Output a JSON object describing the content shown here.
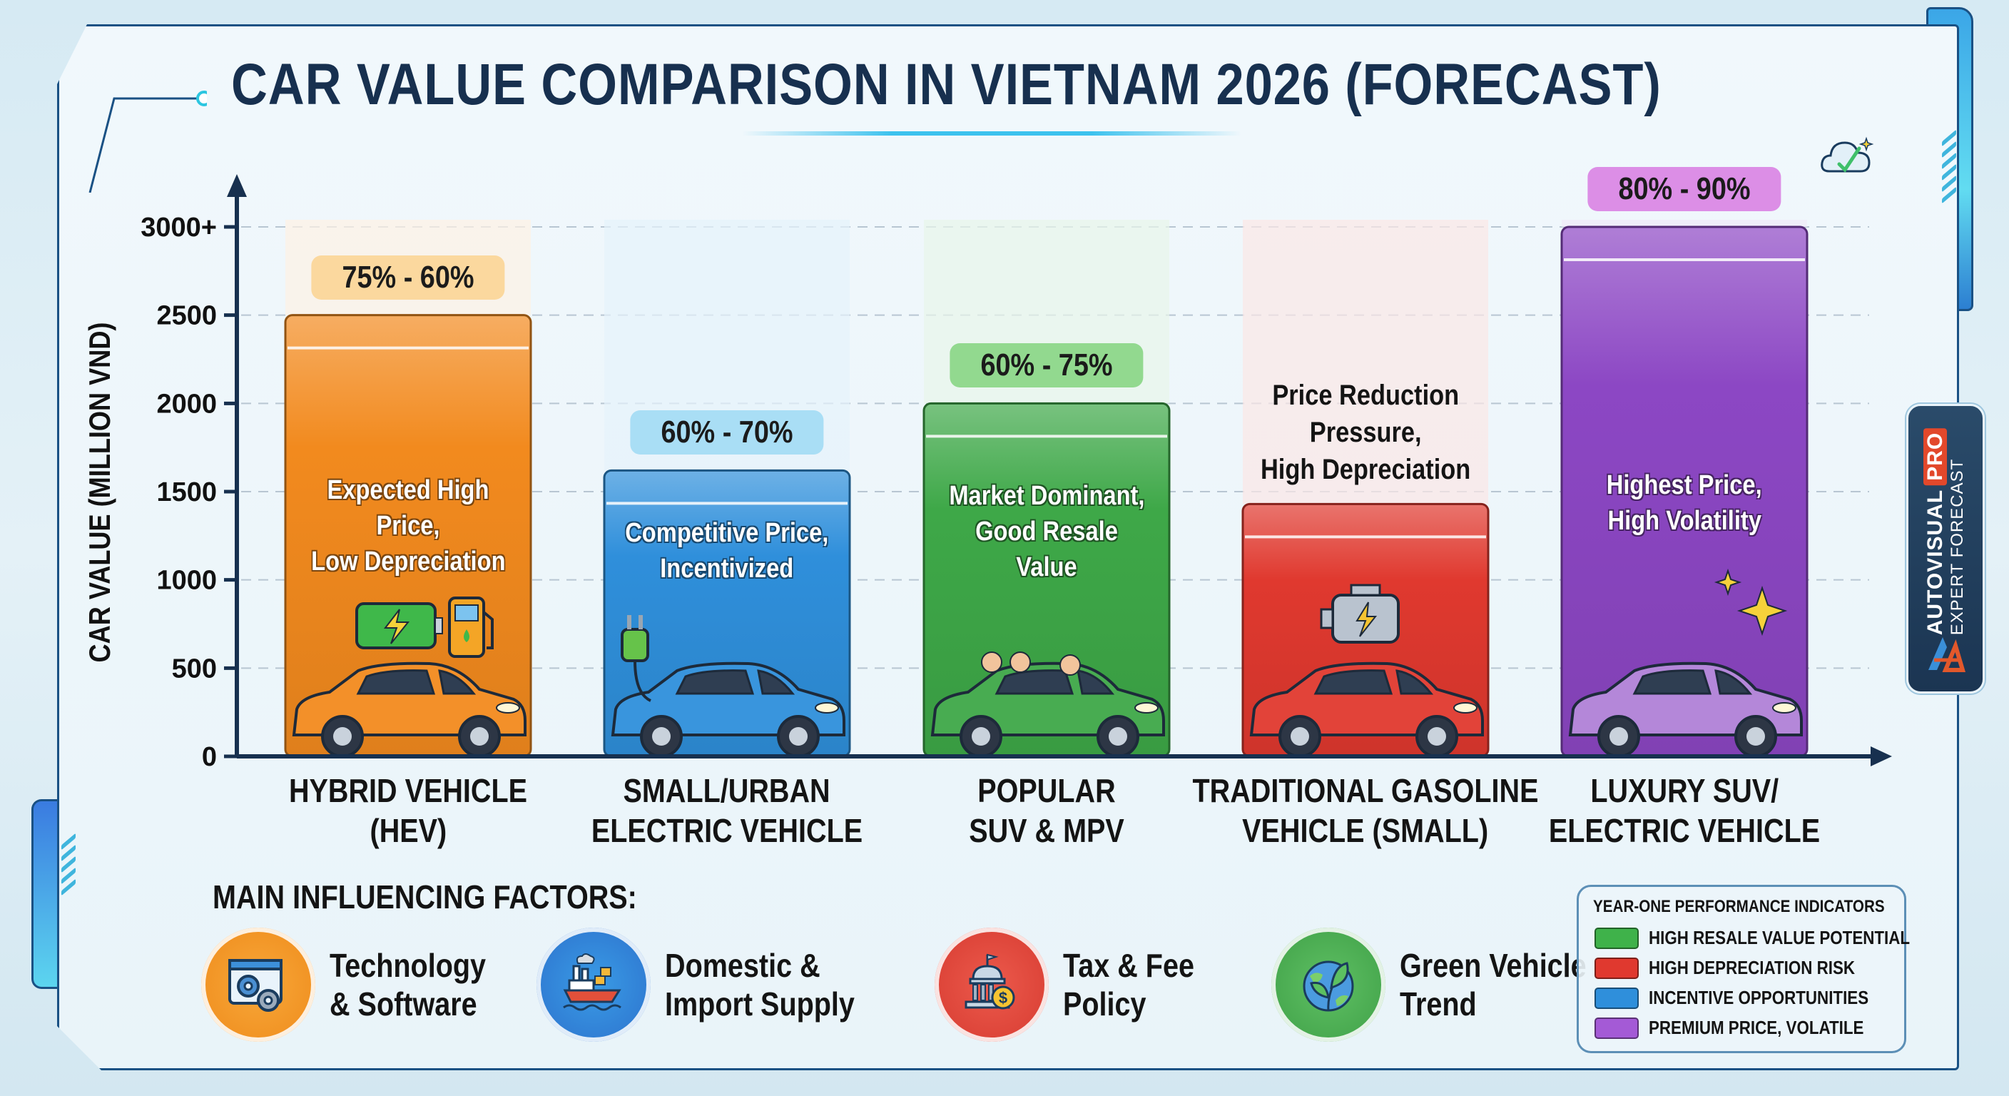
{
  "title": "CAR VALUE COMPARISON IN VIETNAM 2026 (FORECAST)",
  "brand_badge": {
    "name": "AUTOVISUAL",
    "tier": "PRO",
    "subtitle": "EXPERT FORECAST"
  },
  "chart_data": {
    "type": "bar",
    "title": "CAR VALUE COMPARISON IN VIETNAM 2026 (FORECAST)",
    "xlabel": "",
    "ylabel": "CAR VALUE (MILLION VND)",
    "ylim": [
      0,
      3000
    ],
    "yticks": [
      0,
      500,
      1000,
      1500,
      2000,
      2500,
      3000
    ],
    "ytick_labels": [
      "0",
      "500",
      "1000",
      "1500",
      "2000",
      "2500",
      "3000+"
    ],
    "grid": true,
    "categories": [
      [
        "HYBRID VEHICLE",
        "(HEV)"
      ],
      [
        "SMALL/URBAN",
        "ELECTRIC VEHICLE"
      ],
      [
        "POPULAR",
        "SUV & MPV"
      ],
      [
        "TRADITIONAL GASOLINE",
        "VEHICLE (SMALL)"
      ],
      [
        "LUXURY SUV/",
        "ELECTRIC VEHICLE"
      ]
    ],
    "values": [
      2500,
      1620,
      2000,
      1430,
      3000
    ],
    "retention_labels": [
      "75% - 60%",
      "60% - 70%",
      "60% - 75%",
      "",
      "80% - 90%"
    ],
    "bar_captions": [
      [
        "Expected High Price,",
        "Low Depreciation"
      ],
      [
        "Competitive Price,",
        "Incentivized"
      ],
      [
        "Market Dominant,",
        "Good Resale Value"
      ],
      [
        "Price Reduction",
        "Pressure,",
        "High Depreciation"
      ],
      [
        "Highest Price,",
        "High Volatility"
      ]
    ],
    "bar_icons": [
      "hybrid-battery-fuel-car",
      "ev-plug-car",
      "family-suv",
      "engine-sedan",
      "sparkle-luxury-suv"
    ],
    "bar_colors": [
      "#f28a1e",
      "#2f8fdb",
      "#3ea848",
      "#e0392f",
      "#8c47c4"
    ],
    "badge_colors": [
      "#fbd89e",
      "#a9def5",
      "#92d98f",
      "",
      "#dc8ee6"
    ]
  },
  "factors": {
    "heading": "MAIN INFLUENCING FACTORS:",
    "items": [
      {
        "lines": [
          "Technology",
          "& Software"
        ],
        "icon": "gears-window-icon",
        "color": "#f3a12a"
      },
      {
        "lines": [
          "Domestic &",
          "Import Supply"
        ],
        "icon": "cargo-ship-icon",
        "color": "#2c85d8"
      },
      {
        "lines": [
          "Tax & Fee",
          "Policy"
        ],
        "icon": "government-building-icon",
        "color": "#e0463c"
      },
      {
        "lines": [
          "Green Vehicle",
          "Trend"
        ],
        "icon": "leaf-globe-icon",
        "color": "#4cb255"
      }
    ]
  },
  "legend": {
    "title": "YEAR-ONE PERFORMANCE INDICATORS",
    "items": [
      {
        "label": "HIGH RESALE VALUE POTENTIAL",
        "color": "#3fb24a"
      },
      {
        "label": "HIGH DEPRECIATION RISK",
        "color": "#e0392f"
      },
      {
        "label": "INCENTIVE OPPORTUNITIES",
        "color": "#2f8fdb"
      },
      {
        "label": "PREMIUM PRICE, VOLATILE",
        "color": "#a45ad6"
      }
    ]
  }
}
